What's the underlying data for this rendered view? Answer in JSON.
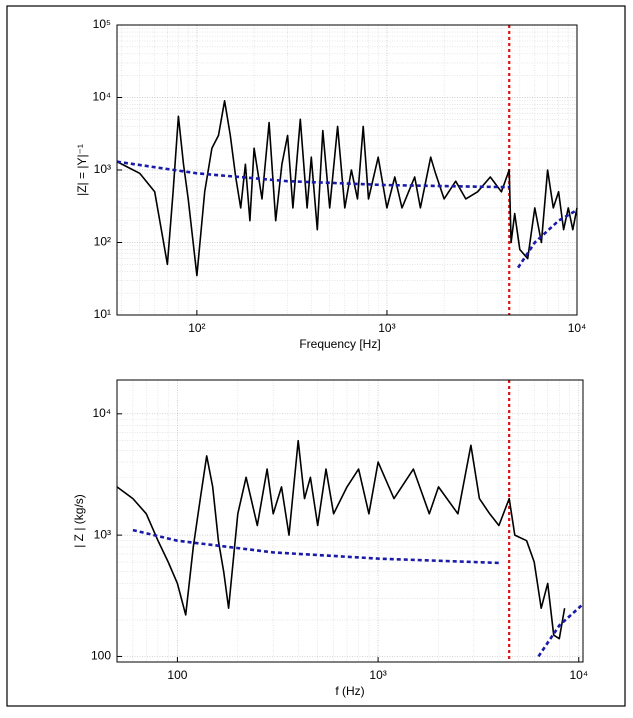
{
  "chart_data": [
    {
      "type": "line",
      "xscale": "log",
      "yscale": "log",
      "grid": true,
      "xlabel": "Frequency [Hz]",
      "ylabel": "|Z| = |Y|⁻¹",
      "xlim": [
        38,
        10000
      ],
      "ylim": [
        10,
        100000
      ],
      "xticks": [
        {
          "value": 100,
          "label": "10²"
        },
        {
          "value": 1000,
          "label": "10³"
        },
        {
          "value": 10000,
          "label": "10⁴"
        }
      ],
      "yticks": [
        {
          "value": 10,
          "label": "10¹"
        },
        {
          "value": 100,
          "label": "10²"
        },
        {
          "value": 1000,
          "label": "10³"
        },
        {
          "value": 10000,
          "label": "10⁴"
        },
        {
          "value": 100000,
          "label": "10⁵"
        }
      ],
      "series": [
        {
          "color": "#000000",
          "dash": false,
          "x": [
            38,
            50,
            60,
            70,
            75,
            80,
            85,
            90,
            100,
            110,
            120,
            130,
            140,
            150,
            160,
            170,
            180,
            190,
            200,
            220,
            240,
            260,
            280,
            300,
            320,
            350,
            380,
            400,
            430,
            460,
            500,
            550,
            600,
            650,
            700,
            750,
            800,
            900,
            1000,
            1100,
            1200,
            1300,
            1400,
            1500,
            1700,
            1800,
            2000,
            2300,
            2600,
            3000,
            3500,
            4000,
            4400,
            4500,
            4700,
            5000,
            5500,
            6000,
            6500,
            7000,
            7500,
            8000,
            8500,
            9000,
            9500,
            10000
          ],
          "values": [
            1300,
            900,
            500,
            50,
            500,
            5500,
            1200,
            400,
            35,
            500,
            2000,
            3000,
            9000,
            3000,
            800,
            300,
            1200,
            200,
            2000,
            400,
            4500,
            200,
            1200,
            3000,
            300,
            5000,
            300,
            1500,
            150,
            3500,
            300,
            4000,
            300,
            1000,
            400,
            4000,
            400,
            1500,
            300,
            800,
            300,
            500,
            800,
            300,
            1500,
            900,
            400,
            700,
            400,
            500,
            800,
            500,
            1000,
            100,
            250,
            80,
            60,
            300,
            100,
            1000,
            300,
            500,
            150,
            300,
            150,
            300
          ]
        },
        {
          "color": "#1a1aa8",
          "dash": true,
          "x": [
            38,
            100,
            300,
            1000,
            4400,
            4700,
            4900,
            6000,
            8000,
            10000
          ],
          "values": [
            1300,
            900,
            700,
            620,
            580,
            null,
            45,
            100,
            200,
            280
          ]
        }
      ],
      "vlines": [
        {
          "x": 4400,
          "color": "#e01010"
        }
      ]
    },
    {
      "type": "line",
      "xscale": "log",
      "yscale": "log",
      "grid": true,
      "xlabel": "f (Hz)",
      "ylabel": "| Z | (kg/s)",
      "xlim": [
        50,
        10500
      ],
      "ylim": [
        90,
        19000
      ],
      "xticks": [
        100,
        {
          "value": 1000,
          "label": "10³"
        },
        {
          "value": 10000,
          "label": "10⁴"
        }
      ],
      "yticks": [
        100,
        {
          "value": 1000,
          "label": "10³"
        },
        {
          "value": 10000,
          "label": "10⁴"
        }
      ],
      "series": [
        {
          "color": "#000000",
          "dash": false,
          "x": [
            50,
            60,
            70,
            80,
            90,
            100,
            110,
            120,
            130,
            140,
            150,
            160,
            170,
            180,
            200,
            220,
            250,
            280,
            300,
            330,
            360,
            400,
            430,
            460,
            500,
            550,
            600,
            700,
            800,
            900,
            1000,
            1200,
            1500,
            1800,
            2000,
            2500,
            2900,
            3200,
            3600,
            4000,
            4500,
            4800,
            5500,
            6000,
            6500,
            7000,
            7500,
            8000,
            8500
          ],
          "values": [
            2500,
            2000,
            1500,
            900,
            600,
            400,
            220,
            800,
            2000,
            4500,
            2500,
            900,
            500,
            250,
            1500,
            3000,
            1200,
            3500,
            1500,
            2500,
            1000,
            6000,
            2000,
            3000,
            1200,
            3500,
            1500,
            2500,
            3500,
            1500,
            4000,
            2000,
            3500,
            1500,
            2500,
            1500,
            5500,
            2000,
            1500,
            1200,
            2000,
            1000,
            900,
            600,
            250,
            400,
            150,
            140,
            250
          ]
        },
        {
          "color": "#1a1aa8",
          "dash": true,
          "x": [
            60,
            100,
            300,
            1000,
            4000,
            5000,
            6300,
            8000,
            10500
          ],
          "values": [
            1100,
            900,
            720,
            640,
            590,
            null,
            100,
            180,
            270
          ]
        }
      ],
      "vlines": [
        {
          "x": 4500,
          "color": "#e01010"
        }
      ]
    }
  ]
}
